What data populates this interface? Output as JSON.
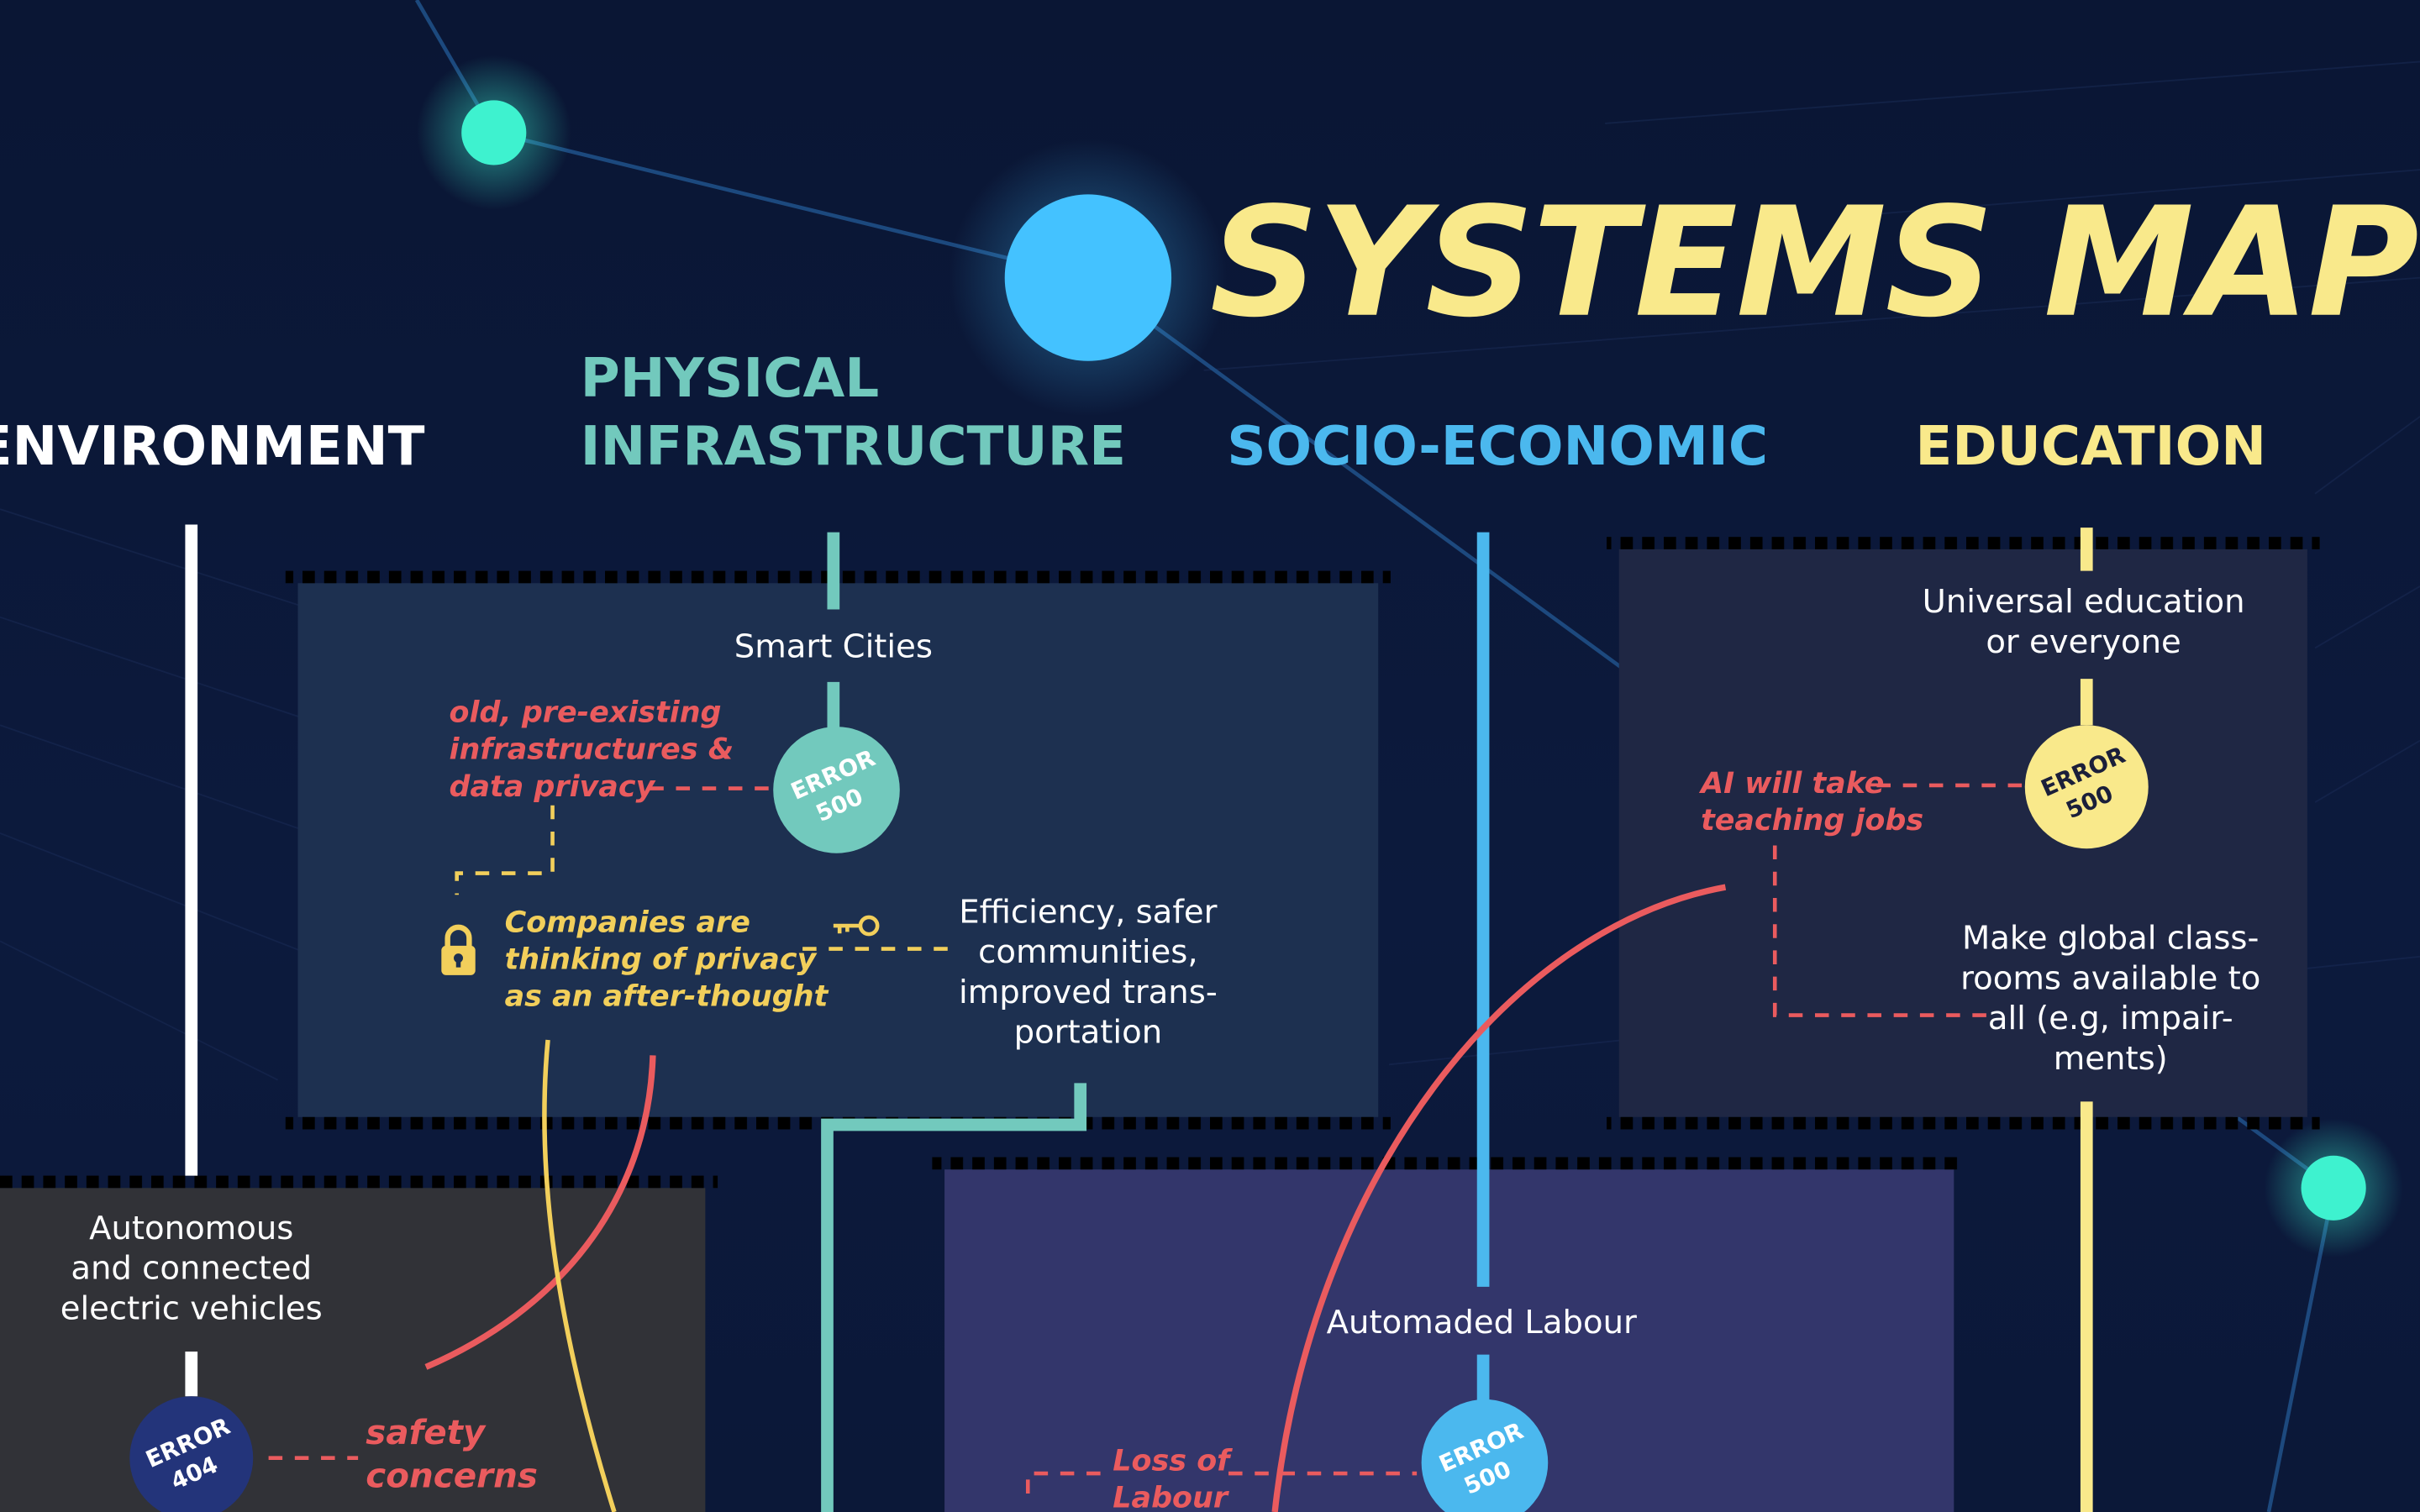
{
  "title": "SYSTEMS MAP",
  "colors": {
    "background": "#0b1838",
    "title": "#f9e98b",
    "teal": "#72c9bd",
    "blue": "#4bb8ee",
    "yellow": "#f9e98b",
    "red": "#ea5b5e",
    "white": "#ffffff",
    "glow_green": "#3ef2cf",
    "glow_blue": "#44c2ff"
  },
  "categories": {
    "environment": "ENVIRONMENT",
    "physical": {
      "line1": "PHYSICAL",
      "line2": "INFRASTRUCTURE"
    },
    "socio": "SOCIO-ECONOMIC",
    "education": "EDUCATION"
  },
  "physical_panel": {
    "node": "Smart Cities",
    "error": {
      "line1": "ERROR",
      "line2": "500"
    },
    "issue_red": [
      "old, pre-existing",
      "infrastructures &",
      "data privacy"
    ],
    "issue_yellow": [
      "Companies are",
      "thinking of privacy",
      "as an after-thought"
    ],
    "benefit": [
      "Efficiency, safer",
      "communities,",
      "improved trans-",
      "portation"
    ],
    "icons": {
      "lock": "lock-icon",
      "key": "key-icon"
    }
  },
  "education_panel": {
    "node": [
      "Universal education",
      "or everyone"
    ],
    "error": {
      "line1": "ERROR",
      "line2": "500"
    },
    "issue_red": [
      "AI will take",
      "teaching jobs"
    ],
    "benefit": [
      "Make global class-",
      "rooms available to",
      "all (e.g, impair-",
      "ments)"
    ]
  },
  "environment_panel": {
    "node": [
      "Autonomous",
      "and connected",
      "electric vehicles"
    ],
    "error": {
      "line1": "ERROR",
      "line2": "404"
    },
    "issue_red": [
      "safety",
      "concerns"
    ]
  },
  "socio_panel": {
    "node": "Automaded Labour",
    "error": {
      "line1": "ERROR",
      "line2": "500"
    },
    "issue_red": [
      "Loss of",
      "Labour"
    ]
  }
}
